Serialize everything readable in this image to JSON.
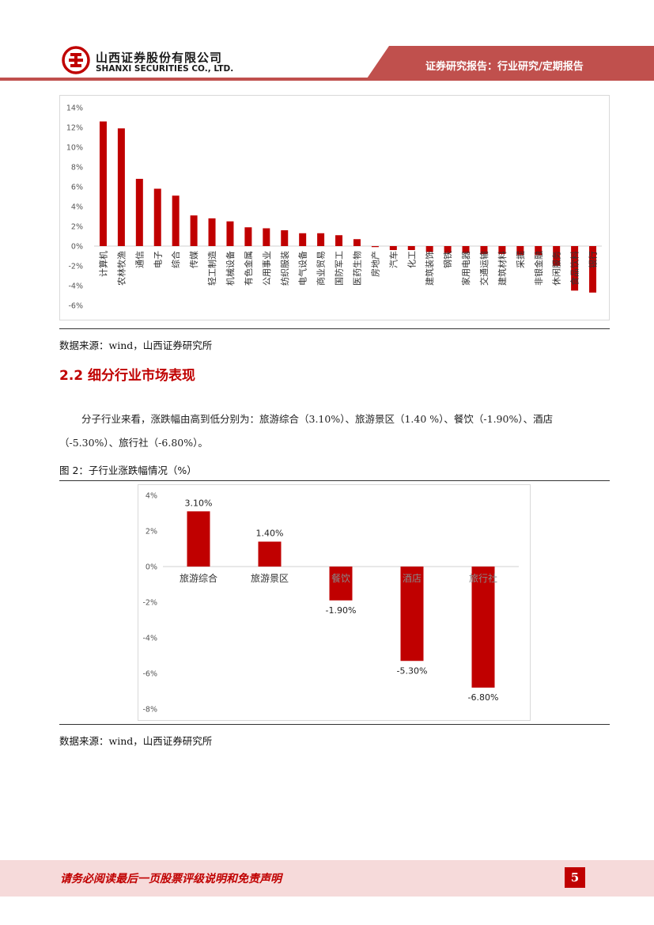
{
  "header": {
    "company_cn": "山西证券股份有限公司",
    "company_en": "SHANXI SECURITIES CO., LTD.",
    "report_type": "证券研究报告：行业研究/定期报告",
    "brand_color": "#c00000"
  },
  "figure1": {
    "source": "数据来源：wind，山西证券研究所"
  },
  "section": {
    "title": "2.2 细分行业市场表现",
    "paragraph": "分子行业来看，涨跌幅由高到低分别为：旅游综合（3.10%）、旅游景区（1.40 %）、餐饮（-1.90%）、酒店（-5.30%）、旅行社（-6.80%）。"
  },
  "figure2": {
    "caption": "图 2：子行业涨跌幅情况（%）",
    "source": "数据来源：wind，山西证券研究所"
  },
  "footer": {
    "disclaimer": "请务必阅读最后一页股票评级说明和免责声明",
    "page_number": "5"
  },
  "chart_data": [
    {
      "type": "bar",
      "categories": [
        "计算机",
        "农林牧渔",
        "通信",
        "电子",
        "综合",
        "传媒",
        "轻工制造",
        "机械设备",
        "有色金属",
        "公用事业",
        "纺织服装",
        "电气设备",
        "商业贸易",
        "国防军工",
        "医药生物",
        "房地产",
        "汽车",
        "化工",
        "建筑装饰",
        "钢铁",
        "家用电器",
        "交通运输",
        "建筑材料",
        "采掘",
        "非银金融",
        "休闲服务",
        "食品饮料",
        "银行"
      ],
      "values": [
        12.6,
        11.9,
        6.8,
        5.8,
        5.1,
        3.1,
        2.8,
        2.5,
        1.9,
        1.8,
        1.6,
        1.3,
        1.3,
        1.1,
        0.7,
        -0.1,
        -0.4,
        -0.4,
        -0.6,
        -0.7,
        -0.7,
        -0.8,
        -0.8,
        -0.9,
        -0.9,
        -2.0,
        -4.5,
        -4.7
      ],
      "ylim": [
        -6,
        14
      ],
      "yticks": [
        "14%",
        "12%",
        "10%",
        "8%",
        "6%",
        "4%",
        "2%",
        "0%",
        "-2%",
        "-4%",
        "-6%"
      ],
      "color": "#c00000"
    },
    {
      "type": "bar",
      "categories": [
        "旅游综合",
        "旅游景区",
        "餐饮",
        "酒店",
        "旅行社"
      ],
      "values": [
        3.1,
        1.4,
        -1.9,
        -5.3,
        -6.8
      ],
      "data_labels": [
        "3.10%",
        "1.40%",
        "-1.90%",
        "-5.30%",
        "-6.80%"
      ],
      "ylim": [
        -8,
        4
      ],
      "yticks": [
        "4%",
        "2%",
        "0%",
        "-2%",
        "-4%",
        "-6%",
        "-8%"
      ],
      "color": "#c00000"
    }
  ]
}
